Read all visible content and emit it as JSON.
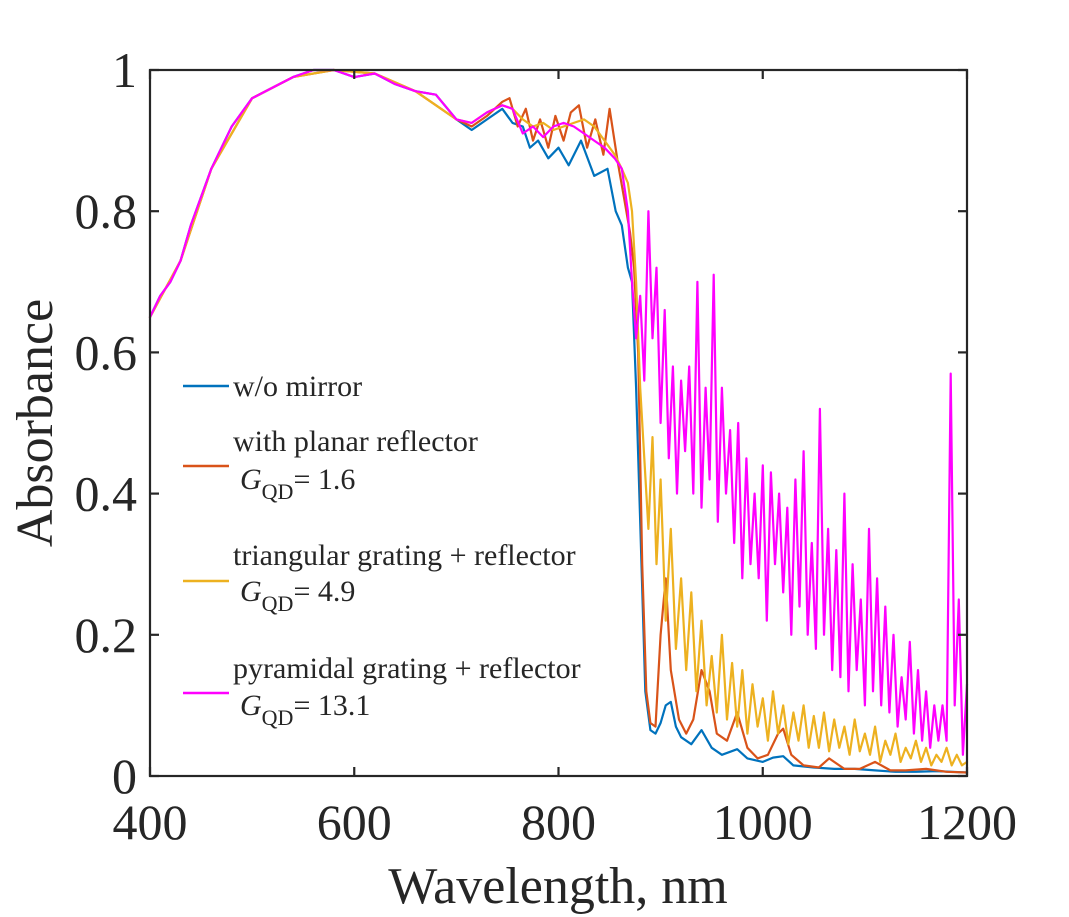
{
  "chart_data": {
    "type": "line",
    "xlabel": "Wavelength, nm",
    "ylabel": "Absorbance",
    "xlim": [
      400,
      1200
    ],
    "ylim": [
      0,
      1
    ],
    "xticks": [
      "400",
      "600",
      "800",
      "1000",
      "1200"
    ],
    "yticks": [
      "0",
      "0.2",
      "0.4",
      "0.6",
      "0.8",
      "1"
    ],
    "grid": false,
    "legend_position": "center-left",
    "series": [
      {
        "name": "w/o mirror",
        "color": "#0072BD",
        "gqd": "",
        "x": [
          400,
          410,
          420,
          430,
          440,
          460,
          480,
          500,
          520,
          540,
          560,
          580,
          600,
          620,
          640,
          660,
          680,
          700,
          715,
          730,
          745,
          755,
          765,
          772,
          780,
          790,
          800,
          810,
          822,
          835,
          848,
          856,
          862,
          868,
          872,
          876,
          880,
          885,
          890,
          895,
          900,
          905,
          910,
          915,
          920,
          930,
          940,
          950,
          960,
          975,
          985,
          1000,
          1010,
          1020,
          1030,
          1050,
          1070,
          1090,
          1110,
          1130,
          1150,
          1170,
          1185,
          1200
        ],
        "y": [
          0.65,
          0.68,
          0.7,
          0.73,
          0.78,
          0.86,
          0.92,
          0.96,
          0.975,
          0.99,
          1.0,
          1.0,
          0.99,
          0.995,
          0.98,
          0.97,
          0.965,
          0.93,
          0.915,
          0.93,
          0.945,
          0.925,
          0.92,
          0.89,
          0.9,
          0.875,
          0.89,
          0.865,
          0.9,
          0.85,
          0.86,
          0.8,
          0.78,
          0.72,
          0.7,
          0.55,
          0.36,
          0.12,
          0.065,
          0.06,
          0.075,
          0.1,
          0.105,
          0.07,
          0.055,
          0.045,
          0.065,
          0.04,
          0.03,
          0.038,
          0.025,
          0.02,
          0.026,
          0.028,
          0.015,
          0.012,
          0.01,
          0.01,
          0.008,
          0.006,
          0.006,
          0.007,
          0.006,
          0.005
        ]
      },
      {
        "name": "with planar reflector",
        "color": "#D95319",
        "gqd": "= 1.6",
        "x": [
          400,
          430,
          460,
          500,
          540,
          580,
          620,
          660,
          700,
          715,
          730,
          745,
          752,
          760,
          768,
          775,
          782,
          790,
          797,
          805,
          812,
          820,
          828,
          836,
          844,
          850,
          858,
          864,
          870,
          874,
          878,
          882,
          886,
          890,
          895,
          900,
          905,
          910,
          918,
          925,
          932,
          940,
          948,
          955,
          965,
          975,
          985,
          995,
          1005,
          1015,
          1020,
          1028,
          1040,
          1055,
          1065,
          1080,
          1095,
          1110,
          1125,
          1140,
          1160,
          1180,
          1200
        ],
        "y": [
          0.65,
          0.73,
          0.86,
          0.96,
          0.99,
          1.0,
          0.995,
          0.97,
          0.93,
          0.92,
          0.935,
          0.955,
          0.96,
          0.92,
          0.945,
          0.9,
          0.93,
          0.89,
          0.935,
          0.9,
          0.94,
          0.95,
          0.89,
          0.93,
          0.88,
          0.945,
          0.87,
          0.82,
          0.77,
          0.72,
          0.6,
          0.3,
          0.12,
          0.075,
          0.07,
          0.2,
          0.28,
          0.15,
          0.08,
          0.06,
          0.08,
          0.15,
          0.12,
          0.06,
          0.05,
          0.09,
          0.04,
          0.025,
          0.03,
          0.06,
          0.067,
          0.03,
          0.015,
          0.012,
          0.025,
          0.01,
          0.01,
          0.02,
          0.008,
          0.008,
          0.01,
          0.006,
          0.005
        ]
      },
      {
        "name": "triangular grating + reflector",
        "color": "#EDB120",
        "gqd": "= 4.9",
        "x": [
          400,
          430,
          460,
          500,
          540,
          580,
          620,
          660,
          700,
          715,
          730,
          745,
          755,
          765,
          775,
          785,
          795,
          805,
          815,
          825,
          835,
          845,
          855,
          862,
          868,
          872,
          876,
          880,
          884,
          888,
          892,
          896,
          900,
          905,
          910,
          915,
          920,
          925,
          930,
          935,
          940,
          945,
          950,
          955,
          960,
          965,
          970,
          975,
          980,
          985,
          990,
          995,
          1000,
          1005,
          1010,
          1015,
          1020,
          1025,
          1030,
          1035,
          1040,
          1045,
          1050,
          1055,
          1060,
          1065,
          1070,
          1075,
          1080,
          1085,
          1090,
          1095,
          1100,
          1105,
          1110,
          1115,
          1120,
          1125,
          1130,
          1135,
          1140,
          1145,
          1150,
          1155,
          1160,
          1165,
          1170,
          1175,
          1180,
          1185,
          1190,
          1195,
          1200
        ],
        "y": [
          0.65,
          0.73,
          0.86,
          0.96,
          0.99,
          1.0,
          0.995,
          0.97,
          0.93,
          0.925,
          0.94,
          0.95,
          0.945,
          0.93,
          0.92,
          0.925,
          0.915,
          0.92,
          0.925,
          0.93,
          0.92,
          0.9,
          0.88,
          0.86,
          0.84,
          0.8,
          0.7,
          0.55,
          0.45,
          0.35,
          0.48,
          0.3,
          0.42,
          0.22,
          0.35,
          0.18,
          0.28,
          0.15,
          0.26,
          0.12,
          0.22,
          0.1,
          0.17,
          0.09,
          0.2,
          0.08,
          0.16,
          0.07,
          0.15,
          0.06,
          0.13,
          0.07,
          0.11,
          0.05,
          0.12,
          0.06,
          0.1,
          0.045,
          0.09,
          0.05,
          0.1,
          0.04,
          0.085,
          0.04,
          0.09,
          0.035,
          0.08,
          0.04,
          0.07,
          0.03,
          0.08,
          0.035,
          0.06,
          0.03,
          0.07,
          0.02,
          0.05,
          0.03,
          0.06,
          0.02,
          0.04,
          0.025,
          0.05,
          0.02,
          0.04,
          0.015,
          0.03,
          0.02,
          0.04,
          0.015,
          0.03,
          0.015,
          0.02
        ]
      },
      {
        "name": "pyramidal grating + reflector",
        "color": "#FF00FF",
        "gqd": "= 13.1",
        "x": [
          400,
          410,
          420,
          430,
          440,
          460,
          480,
          500,
          520,
          540,
          560,
          580,
          600,
          620,
          640,
          660,
          680,
          700,
          715,
          730,
          745,
          755,
          765,
          775,
          785,
          795,
          805,
          815,
          825,
          835,
          845,
          855,
          862,
          868,
          872,
          876,
          880,
          884,
          888,
          892,
          896,
          900,
          904,
          908,
          912,
          916,
          920,
          924,
          928,
          932,
          936,
          940,
          944,
          948,
          952,
          956,
          960,
          964,
          968,
          972,
          976,
          980,
          984,
          988,
          992,
          996,
          1000,
          1004,
          1008,
          1012,
          1016,
          1020,
          1024,
          1028,
          1032,
          1036,
          1040,
          1044,
          1048,
          1052,
          1056,
          1060,
          1064,
          1068,
          1072,
          1076,
          1080,
          1084,
          1088,
          1092,
          1096,
          1100,
          1104,
          1108,
          1112,
          1116,
          1120,
          1124,
          1128,
          1132,
          1136,
          1140,
          1144,
          1148,
          1152,
          1156,
          1160,
          1164,
          1168,
          1172,
          1176,
          1180,
          1184,
          1188,
          1192,
          1196,
          1200
        ],
        "y": [
          0.65,
          0.68,
          0.7,
          0.73,
          0.78,
          0.86,
          0.92,
          0.96,
          0.975,
          0.99,
          1.0,
          1.0,
          0.99,
          0.995,
          0.98,
          0.97,
          0.965,
          0.93,
          0.925,
          0.94,
          0.95,
          0.945,
          0.91,
          0.92,
          0.905,
          0.92,
          0.925,
          0.92,
          0.91,
          0.9,
          0.89,
          0.875,
          0.86,
          0.8,
          0.7,
          0.62,
          0.68,
          0.56,
          0.8,
          0.62,
          0.72,
          0.5,
          0.66,
          0.45,
          0.58,
          0.4,
          0.56,
          0.46,
          0.58,
          0.4,
          0.7,
          0.38,
          0.55,
          0.42,
          0.71,
          0.36,
          0.55,
          0.4,
          0.49,
          0.33,
          0.5,
          0.28,
          0.45,
          0.3,
          0.4,
          0.28,
          0.44,
          0.22,
          0.43,
          0.3,
          0.4,
          0.26,
          0.38,
          0.2,
          0.42,
          0.24,
          0.46,
          0.2,
          0.33,
          0.18,
          0.52,
          0.2,
          0.35,
          0.15,
          0.32,
          0.14,
          0.4,
          0.12,
          0.3,
          0.15,
          0.25,
          0.1,
          0.35,
          0.12,
          0.28,
          0.1,
          0.24,
          0.09,
          0.2,
          0.07,
          0.14,
          0.08,
          0.19,
          0.06,
          0.15,
          0.05,
          0.12,
          0.04,
          0.1,
          0.05,
          0.1,
          0.05,
          0.57,
          0.1,
          0.25,
          0.03,
          0.13
        ]
      }
    ]
  },
  "legend": {
    "g_symbol": "G",
    "g_subscript": "QD"
  }
}
